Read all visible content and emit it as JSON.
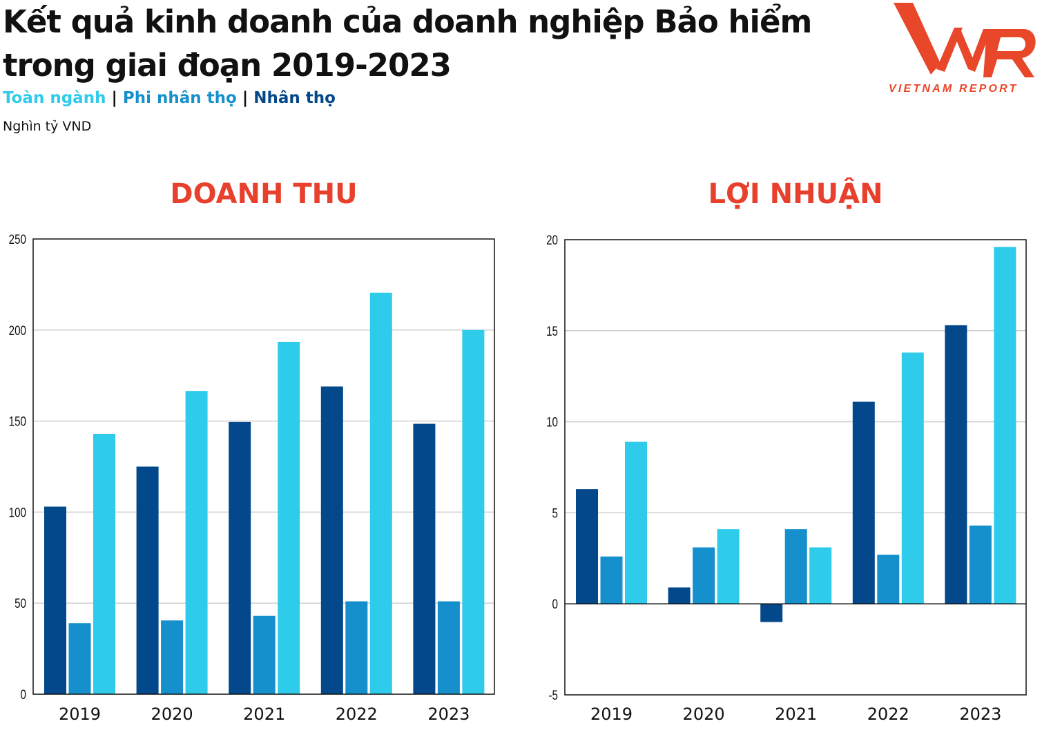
{
  "header": {
    "title_line1": "Kết quả kinh doanh của doanh nghiệp Bảo hiểm",
    "title_line2": "trong giai đoạn 2019-2023",
    "legend": [
      {
        "label": "Toàn ngành",
        "color": "#2ecbea"
      },
      {
        "label": "Phi nhân thọ",
        "color": "#1590cc"
      },
      {
        "label": "Nhân thọ",
        "color": "#03488b"
      }
    ],
    "separator": "|",
    "unit": "Nghìn tỷ VND"
  },
  "logo": {
    "text": "VNR",
    "subtext": "VIETNAM REPORT",
    "color": "#e8472a"
  },
  "chart_data": [
    {
      "type": "bar",
      "title": "DOANH THU",
      "categories": [
        "2019",
        "2020",
        "2021",
        "2022",
        "2023"
      ],
      "ylim": [
        0,
        250
      ],
      "yticks": [
        0,
        50,
        100,
        150,
        200,
        250
      ],
      "grid": true,
      "series": [
        {
          "name": "Nhân thọ",
          "color": "#03488b",
          "values": [
            103,
            125,
            149.5,
            169,
            148.5
          ]
        },
        {
          "name": "Phi nhân thọ",
          "color": "#1590cc",
          "values": [
            39,
            40.5,
            43,
            51,
            51
          ]
        },
        {
          "name": "Toàn ngành",
          "color": "#2ecbea",
          "values": [
            143,
            166.5,
            193.5,
            220.5,
            200
          ]
        }
      ]
    },
    {
      "type": "bar",
      "title": "LỢI NHUẬN",
      "categories": [
        "2019",
        "2020",
        "2021",
        "2022",
        "2023"
      ],
      "ylim": [
        -5,
        20
      ],
      "yticks": [
        -5,
        0,
        5,
        10,
        15,
        20
      ],
      "grid": true,
      "series": [
        {
          "name": "Nhân thọ",
          "color": "#03488b",
          "values": [
            6.3,
            0.9,
            -1.0,
            11.1,
            15.3
          ]
        },
        {
          "name": "Phi nhân thọ",
          "color": "#1590cc",
          "values": [
            2.6,
            3.1,
            4.1,
            2.7,
            4.3
          ]
        },
        {
          "name": "Toàn ngành",
          "color": "#2ecbea",
          "values": [
            8.9,
            4.1,
            3.1,
            13.8,
            19.6
          ]
        }
      ]
    }
  ]
}
